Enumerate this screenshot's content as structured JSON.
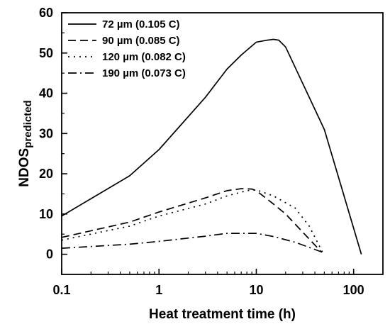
{
  "chart_data": {
    "type": "line",
    "title": "",
    "xlabel": "Heat treatment time (h)",
    "ylabel": "NDOS",
    "ylabel_subscript": "predicted",
    "xscale": "log",
    "xlim": [
      0.1,
      200
    ],
    "ylim": [
      -5,
      60
    ],
    "x_ticks": [
      0.1,
      1,
      10,
      100
    ],
    "x_tick_labels": [
      "0.1",
      "1",
      "10",
      "100"
    ],
    "y_ticks": [
      0,
      10,
      20,
      30,
      40,
      50,
      60
    ],
    "y_tick_labels": [
      "0",
      "10",
      "20",
      "30",
      "40",
      "50",
      "60"
    ],
    "grid": false,
    "legend_position": "top-left",
    "series": [
      {
        "name": "72 µm (0.105 C)",
        "style": "solid",
        "points": [
          [
            0.1,
            9.5
          ],
          [
            0.5,
            19.5
          ],
          [
            1,
            26
          ],
          [
            3,
            39
          ],
          [
            5,
            46
          ],
          [
            7,
            49.5
          ],
          [
            10,
            52.7
          ],
          [
            13,
            53.2
          ],
          [
            15,
            53.4
          ],
          [
            17,
            53.2
          ],
          [
            20,
            51.5
          ],
          [
            50,
            31
          ],
          [
            120,
            0
          ]
        ]
      },
      {
        "name": "90 µm (0.085 C)",
        "style": "dashed",
        "points": [
          [
            0.1,
            4.2
          ],
          [
            0.5,
            8
          ],
          [
            1,
            10.5
          ],
          [
            3,
            14
          ],
          [
            5,
            15.8
          ],
          [
            7,
            16.3
          ],
          [
            9,
            16.2
          ],
          [
            10,
            15.8
          ],
          [
            15,
            12.5
          ],
          [
            20,
            10
          ],
          [
            30,
            5.5
          ],
          [
            47,
            0.5
          ]
        ]
      },
      {
        "name": "120 µm (0.082 C)",
        "style": "dotted",
        "points": [
          [
            0.1,
            3.5
          ],
          [
            0.5,
            7
          ],
          [
            1,
            9.5
          ],
          [
            3,
            12.5
          ],
          [
            5,
            14.5
          ],
          [
            8,
            15.8
          ],
          [
            10,
            16
          ],
          [
            15,
            14.5
          ],
          [
            25,
            11.5
          ],
          [
            35,
            7
          ],
          [
            48,
            0.5
          ]
        ]
      },
      {
        "name": "190 µm (0.073 C)",
        "style": "dash-dot",
        "points": [
          [
            0.1,
            1.5
          ],
          [
            0.5,
            2.5
          ],
          [
            1,
            3.2
          ],
          [
            3,
            4.5
          ],
          [
            5,
            5.2
          ],
          [
            10,
            5.2
          ],
          [
            15,
            4.4
          ],
          [
            25,
            3
          ],
          [
            48,
            0.5
          ]
        ]
      }
    ]
  }
}
